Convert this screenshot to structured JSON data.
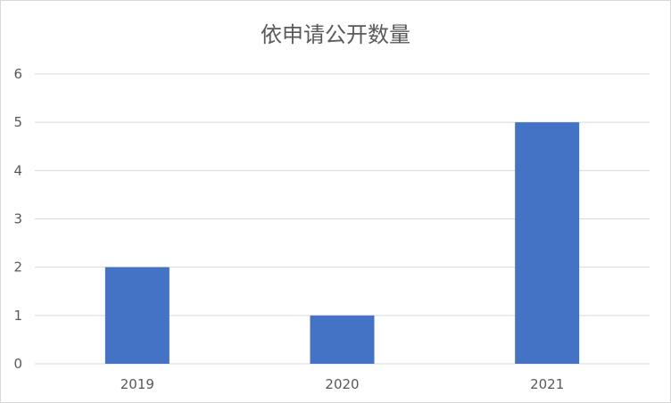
{
  "chart_data": {
    "type": "bar",
    "title": "依申请公开数量",
    "categories": [
      "2019",
      "2020",
      "2021"
    ],
    "values": [
      2,
      1,
      5
    ],
    "ylim": [
      0,
      6
    ],
    "yticks": [
      0,
      1,
      2,
      3,
      4,
      5,
      6
    ],
    "grid": true,
    "color": "#4472c4",
    "xlabel": "",
    "ylabel": ""
  }
}
